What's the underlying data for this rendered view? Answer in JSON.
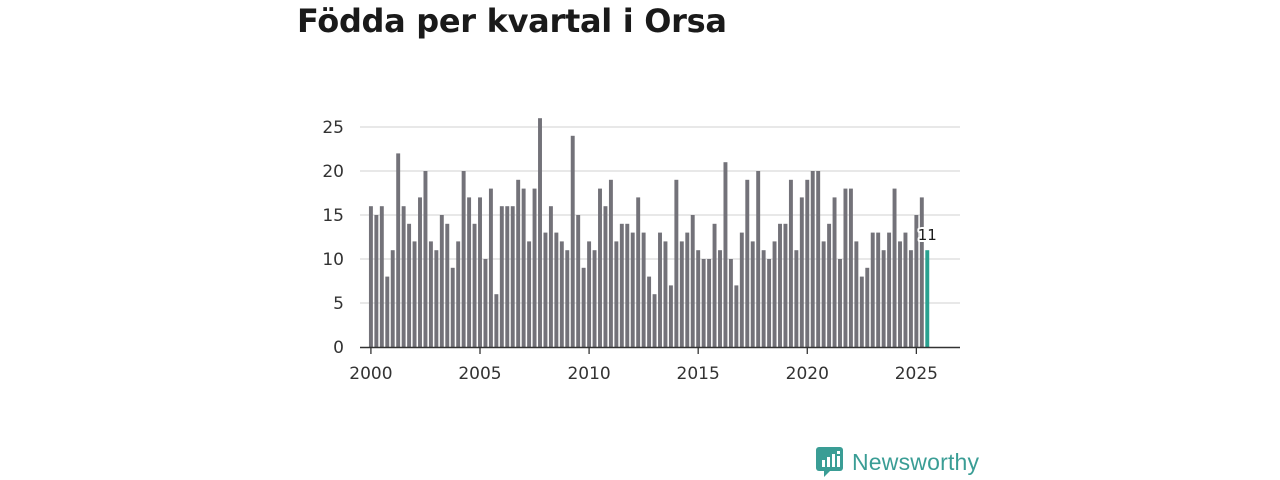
{
  "chart_data": {
    "type": "bar",
    "title": "Födda per kvartal i Orsa",
    "xlabel": "",
    "ylabel": "",
    "start": 2000,
    "step": 0.25,
    "xlim": [
      1999.5,
      2027
    ],
    "ylim": [
      0,
      25
    ],
    "yticks": [
      0,
      5,
      10,
      15,
      20,
      25
    ],
    "xticks": [
      2000,
      2005,
      2010,
      2015,
      2020,
      2025
    ],
    "grid": true,
    "bar_color": "#737279",
    "highlight_color": "#2aa190",
    "highlight_label": "11",
    "values": [
      16,
      15,
      16,
      8,
      11,
      22,
      16,
      14,
      12,
      17,
      20,
      12,
      11,
      15,
      14,
      9,
      12,
      20,
      17,
      14,
      17,
      10,
      18,
      6,
      16,
      16,
      16,
      19,
      18,
      12,
      18,
      26,
      13,
      16,
      13,
      12,
      11,
      24,
      15,
      9,
      12,
      11,
      18,
      16,
      19,
      12,
      14,
      14,
      13,
      17,
      13,
      8,
      6,
      13,
      12,
      7,
      19,
      12,
      13,
      15,
      11,
      10,
      10,
      14,
      11,
      21,
      10,
      7,
      13,
      19,
      12,
      20,
      11,
      10,
      12,
      14,
      14,
      19,
      11,
      17,
      19,
      20,
      20,
      12,
      14,
      17,
      10,
      18,
      18,
      12,
      8,
      9,
      13,
      13,
      11,
      13,
      18,
      12,
      13,
      11,
      15,
      17,
      11
    ]
  },
  "brand": {
    "name": "Newsworthy",
    "icon": "newsworthy-logo-icon",
    "color": "#3a9d95"
  }
}
